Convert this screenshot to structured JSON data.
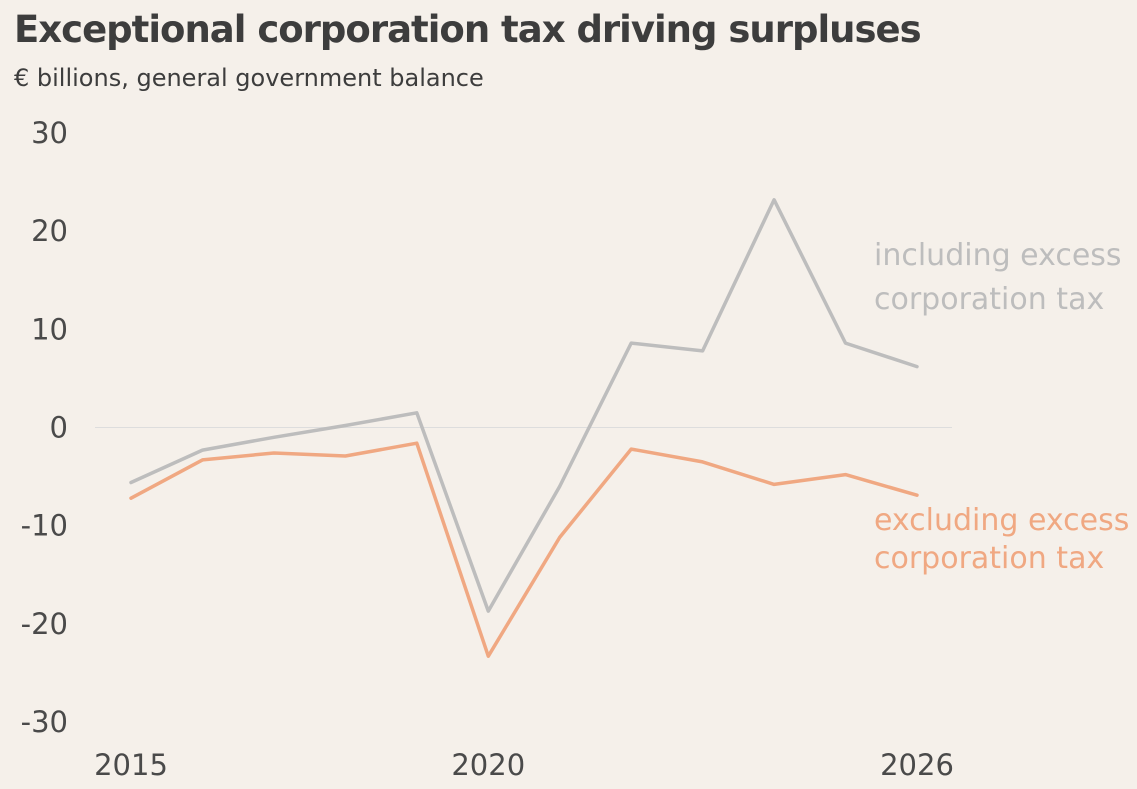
{
  "title": "Exceptional corporation tax driving surpluses",
  "subtitle": "€ billions, general government balance",
  "colors": {
    "background": "#f5f0ea",
    "including": "#bdbdbd",
    "excluding": "#f0a882",
    "zero_line": "#dddddd",
    "text": "#3d3d3d"
  },
  "chart_data": {
    "type": "line",
    "title": "Exceptional corporation tax driving surpluses",
    "subtitle": "€ billions, general government balance",
    "xlabel": "",
    "ylabel": "",
    "x": [
      2015,
      2016,
      2017,
      2018,
      2019,
      2020,
      2021,
      2022,
      2023,
      2024,
      2025,
      2026
    ],
    "xlim": [
      2015,
      2026
    ],
    "ylim": [
      -30,
      30
    ],
    "y_ticks": [
      "30",
      "20",
      "10",
      "0",
      "-10",
      "-20",
      "-30"
    ],
    "x_ticks": [
      "2015",
      "2020",
      "2026"
    ],
    "grid": false,
    "series": [
      {
        "key": "including",
        "label_lines": [
          "including excess",
          "corporation tax"
        ],
        "values": [
          -5.6,
          -2.3,
          -1.0,
          0.2,
          1.5,
          -18.7,
          -6.0,
          8.6,
          7.8,
          23.2,
          8.6,
          6.2
        ]
      },
      {
        "key": "excluding",
        "label_lines": [
          "excluding excess",
          "corporation tax"
        ],
        "values": [
          -7.2,
          -3.3,
          -2.6,
          -2.9,
          -1.6,
          -23.3,
          -11.2,
          -2.2,
          -3.5,
          -5.8,
          -4.8,
          -6.9
        ]
      }
    ]
  }
}
